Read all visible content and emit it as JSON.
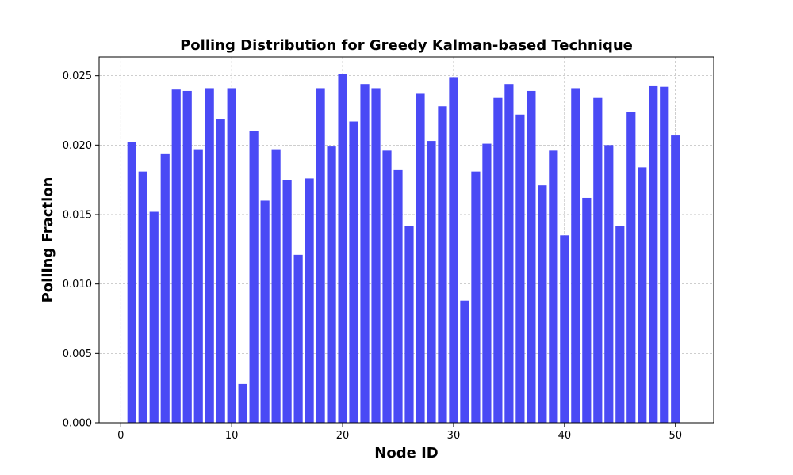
{
  "chart_data": {
    "type": "bar",
    "title": "Polling Distribution for Greedy Kalman-based Technique",
    "xlabel": "Node ID",
    "ylabel": "Polling Fraction",
    "x": [
      1,
      2,
      3,
      4,
      5,
      6,
      7,
      8,
      9,
      10,
      11,
      12,
      13,
      14,
      15,
      16,
      17,
      18,
      19,
      20,
      21,
      22,
      23,
      24,
      25,
      26,
      27,
      28,
      29,
      30,
      31,
      32,
      33,
      34,
      35,
      36,
      37,
      38,
      39,
      40,
      41,
      42,
      43,
      44,
      45,
      46,
      47,
      48,
      49,
      50
    ],
    "values": [
      0.0202,
      0.0181,
      0.0152,
      0.0194,
      0.024,
      0.0239,
      0.0197,
      0.0241,
      0.0219,
      0.0241,
      0.0028,
      0.021,
      0.016,
      0.0197,
      0.0175,
      0.0121,
      0.0176,
      0.0241,
      0.0199,
      0.0251,
      0.0217,
      0.0244,
      0.0241,
      0.0196,
      0.0182,
      0.0142,
      0.0237,
      0.0203,
      0.0228,
      0.0249,
      0.0088,
      0.0181,
      0.0201,
      0.0234,
      0.0244,
      0.0222,
      0.0239,
      0.0171,
      0.0196,
      0.0135,
      0.0241,
      0.0162,
      0.0234,
      0.02,
      0.0142,
      0.0224,
      0.0184,
      0.0243,
      0.0242,
      0.0207
    ],
    "xlim": [
      -1.95,
      53.45
    ],
    "ylim": [
      0,
      0.02635
    ],
    "xticks": [
      0,
      10,
      20,
      30,
      40,
      50
    ],
    "xtick_labels": [
      "0",
      "10",
      "20",
      "30",
      "40",
      "50"
    ],
    "yticks": [
      0,
      0.005,
      0.01,
      0.015,
      0.02,
      0.025
    ],
    "ytick_labels": [
      "0.000",
      "0.005",
      "0.010",
      "0.015",
      "0.020",
      "0.025"
    ],
    "bar_color": "#4a4af5",
    "grid": true
  }
}
